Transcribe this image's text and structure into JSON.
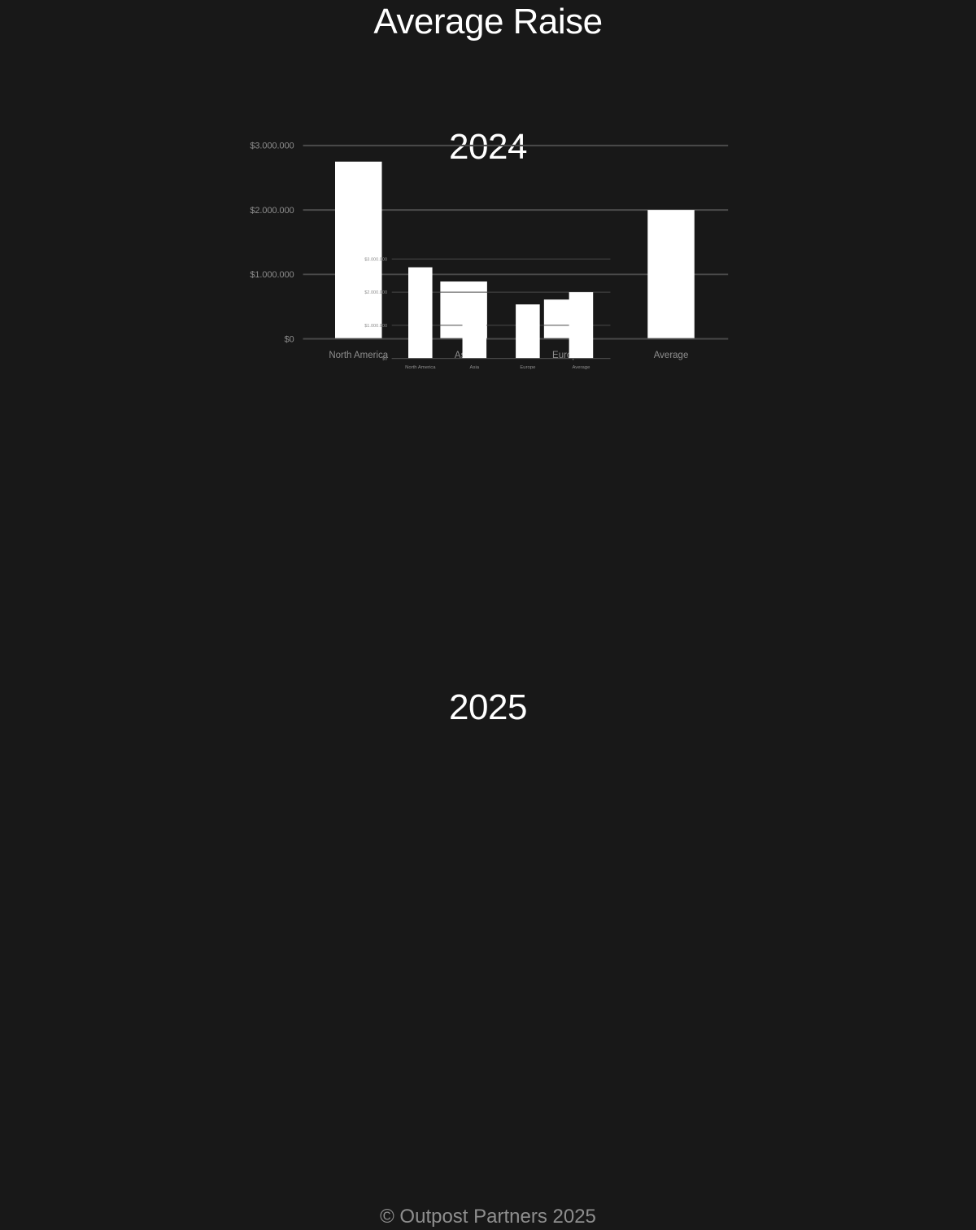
{
  "page": {
    "title": "Average Raise",
    "footer": "© Outpost Partners 2025"
  },
  "colors": {
    "background": "#181818",
    "bar": "#ffffff",
    "grid": "#4a4a4a",
    "tick_text": "#8e8e8e",
    "title_text": "#ffffff"
  },
  "chart_data": [
    {
      "type": "bar",
      "title": "2024",
      "categories": [
        "North America",
        "Asia",
        "Europe",
        "Average"
      ],
      "values": [
        2750000,
        890000,
        610000,
        2000000
      ],
      "xlabel": "",
      "ylabel": "",
      "ylim": [
        0,
        3000000
      ],
      "yticks": [
        0,
        1000000,
        2000000,
        3000000
      ],
      "ytick_labels": [
        "$0",
        "$1.000.000",
        "$2.000.000",
        "$3.000.000"
      ],
      "grid": true,
      "legend": "none"
    },
    {
      "type": "bar",
      "title": "2025",
      "categories": [
        "North America",
        "Asia",
        "Europe",
        "Average"
      ],
      "values": [
        2750000,
        1470000,
        1630000,
        2000000
      ],
      "xlabel": "",
      "ylabel": "",
      "ylim": [
        0,
        3000000
      ],
      "yticks": [
        0,
        1000000,
        2000000,
        3000000
      ],
      "ytick_labels": [
        "$0",
        "$1.000.000",
        "$2.000.000",
        "$3.000.000"
      ],
      "grid": true,
      "legend": "none"
    }
  ]
}
